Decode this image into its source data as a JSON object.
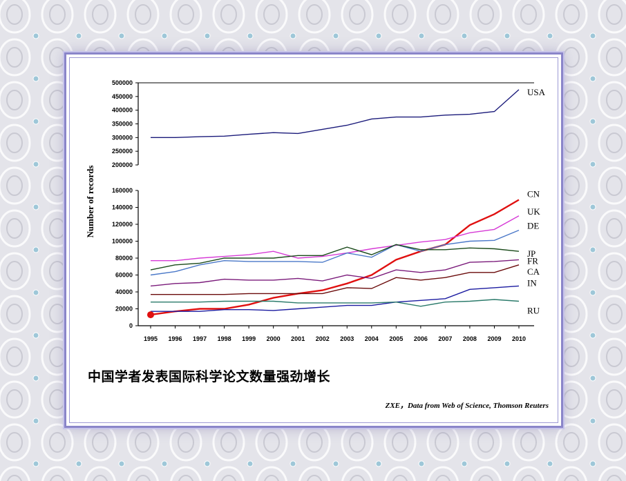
{
  "caption": "中国学者发表国际科学论文数量强劲增长",
  "source": "ZXE，Data from Web of Science, Thomson Reuters",
  "colors": {
    "frame": "#8a85c9",
    "background": "#e6e6ec"
  },
  "chart_data": {
    "type": "line",
    "ylabel": "Number of records",
    "broken_axis": true,
    "upper_panel": {
      "ylim": [
        200000,
        500000
      ],
      "ticks": [
        "500000",
        "450000",
        "400000",
        "350000",
        "300000",
        "250000",
        "200000"
      ]
    },
    "lower_panel": {
      "ylim": [
        0,
        160000
      ],
      "ticks": [
        "160000",
        "140000",
        "120000",
        "100000",
        "80000",
        "60000",
        "40000",
        "20000",
        "0"
      ]
    },
    "x": [
      "1995",
      "1996",
      "1997",
      "1998",
      "1999",
      "2000",
      "2001",
      "2002",
      "2003",
      "2004",
      "2005",
      "2006",
      "2007",
      "2008",
      "2009",
      "2010"
    ],
    "grid": false,
    "series": [
      {
        "name": "USA",
        "panel": "upper",
        "color": "#1a1a7a",
        "values": [
          300000,
          300000,
          303000,
          305000,
          312000,
          318000,
          315000,
          330000,
          345000,
          368000,
          375000,
          375000,
          382000,
          385000,
          395000,
          475000
        ]
      },
      {
        "name": "CN",
        "panel": "lower",
        "color": "#e01010",
        "values": [
          13000,
          17000,
          20000,
          20000,
          25000,
          33000,
          38000,
          42000,
          50000,
          60000,
          78000,
          88000,
          96000,
          119000,
          132000,
          149000
        ]
      },
      {
        "name": "UK",
        "panel": "lower",
        "color": "#d63ad6",
        "values": [
          77000,
          77000,
          80000,
          82000,
          84000,
          88000,
          80000,
          82000,
          86000,
          91000,
          95000,
          99000,
          102000,
          110000,
          114000,
          130000
        ]
      },
      {
        "name": "DE",
        "panel": "lower",
        "color": "#4a78c8",
        "values": [
          60000,
          64000,
          72000,
          77000,
          76000,
          76000,
          76000,
          75000,
          86000,
          81000,
          96000,
          88000,
          96000,
          100000,
          101000,
          113000
        ]
      },
      {
        "name": "JP",
        "panel": "lower",
        "color": "#1a4a1a",
        "values": [
          66000,
          72000,
          74000,
          80000,
          80000,
          80000,
          83000,
          83000,
          93000,
          84000,
          96000,
          90000,
          90000,
          92000,
          91000,
          88000
        ]
      },
      {
        "name": "FR",
        "panel": "lower",
        "color": "#7a1a7a",
        "values": [
          47000,
          50000,
          51000,
          55000,
          54000,
          54000,
          56000,
          53000,
          60000,
          56000,
          66000,
          63000,
          66000,
          75000,
          76000,
          78000
        ]
      },
      {
        "name": "CA",
        "panel": "lower",
        "color": "#6a0a0a",
        "values": [
          37000,
          37000,
          37000,
          37000,
          38000,
          38000,
          38000,
          38000,
          45000,
          44000,
          57000,
          54000,
          57000,
          63000,
          63000,
          72000
        ]
      },
      {
        "name": "IN",
        "panel": "lower",
        "color": "#1a1aa0",
        "values": [
          17000,
          17000,
          17000,
          19000,
          19000,
          18000,
          20000,
          22000,
          24000,
          24000,
          28000,
          30000,
          32000,
          43000,
          45000,
          47000
        ]
      },
      {
        "name": "RU",
        "panel": "lower",
        "color": "#2a7a6a",
        "values": [
          28000,
          28000,
          28000,
          29000,
          29000,
          29000,
          27000,
          27000,
          27000,
          27000,
          28000,
          23000,
          28000,
          29000,
          31000,
          29000
        ]
      }
    ]
  }
}
